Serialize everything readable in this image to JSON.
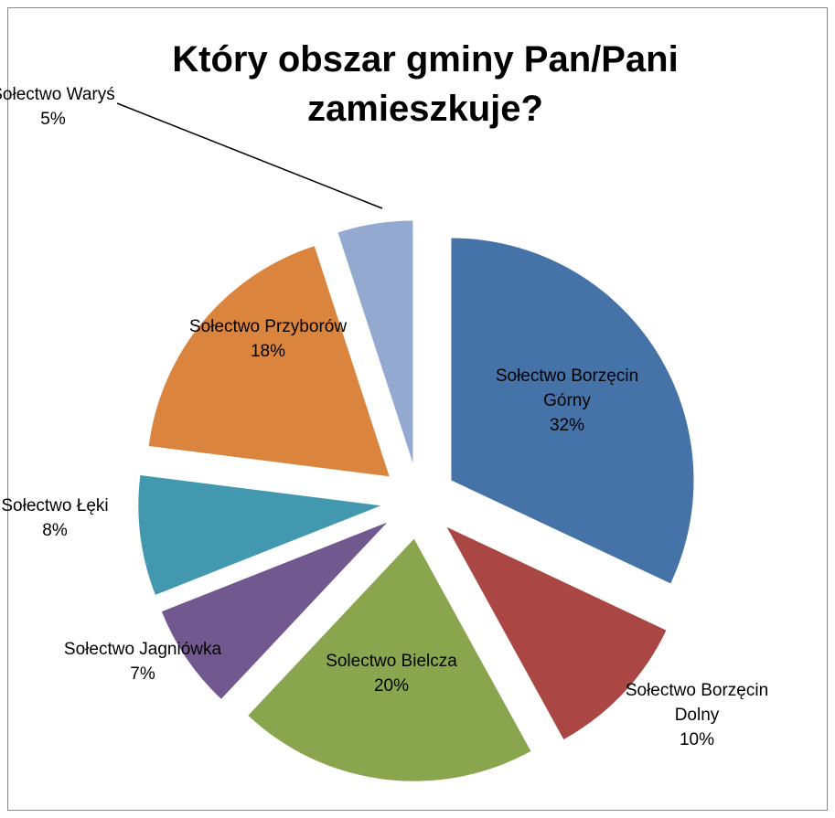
{
  "chart_data": {
    "type": "pie",
    "title": "Który obszar gminy Pan/Pani zamieszkuje?",
    "categories": [
      "Sołectwo Borzęcin Górny",
      "Sołectwo Borzęcin Dolny",
      "Solectwo Bielcza",
      "Sołectwo Jagniówka",
      "Sołectwo Łęki",
      "Sołectwo Przyborów",
      "Sołectwo Waryś"
    ],
    "values": [
      32,
      10,
      20,
      7,
      8,
      18,
      5
    ],
    "value_labels": [
      "32%",
      "10%",
      "20%",
      "7%",
      "8%",
      "18%",
      "5%"
    ],
    "colors": [
      "#4572a7",
      "#aa4643",
      "#89a54e",
      "#71588f",
      "#4198af",
      "#db843d",
      "#93a9cf"
    ]
  }
}
